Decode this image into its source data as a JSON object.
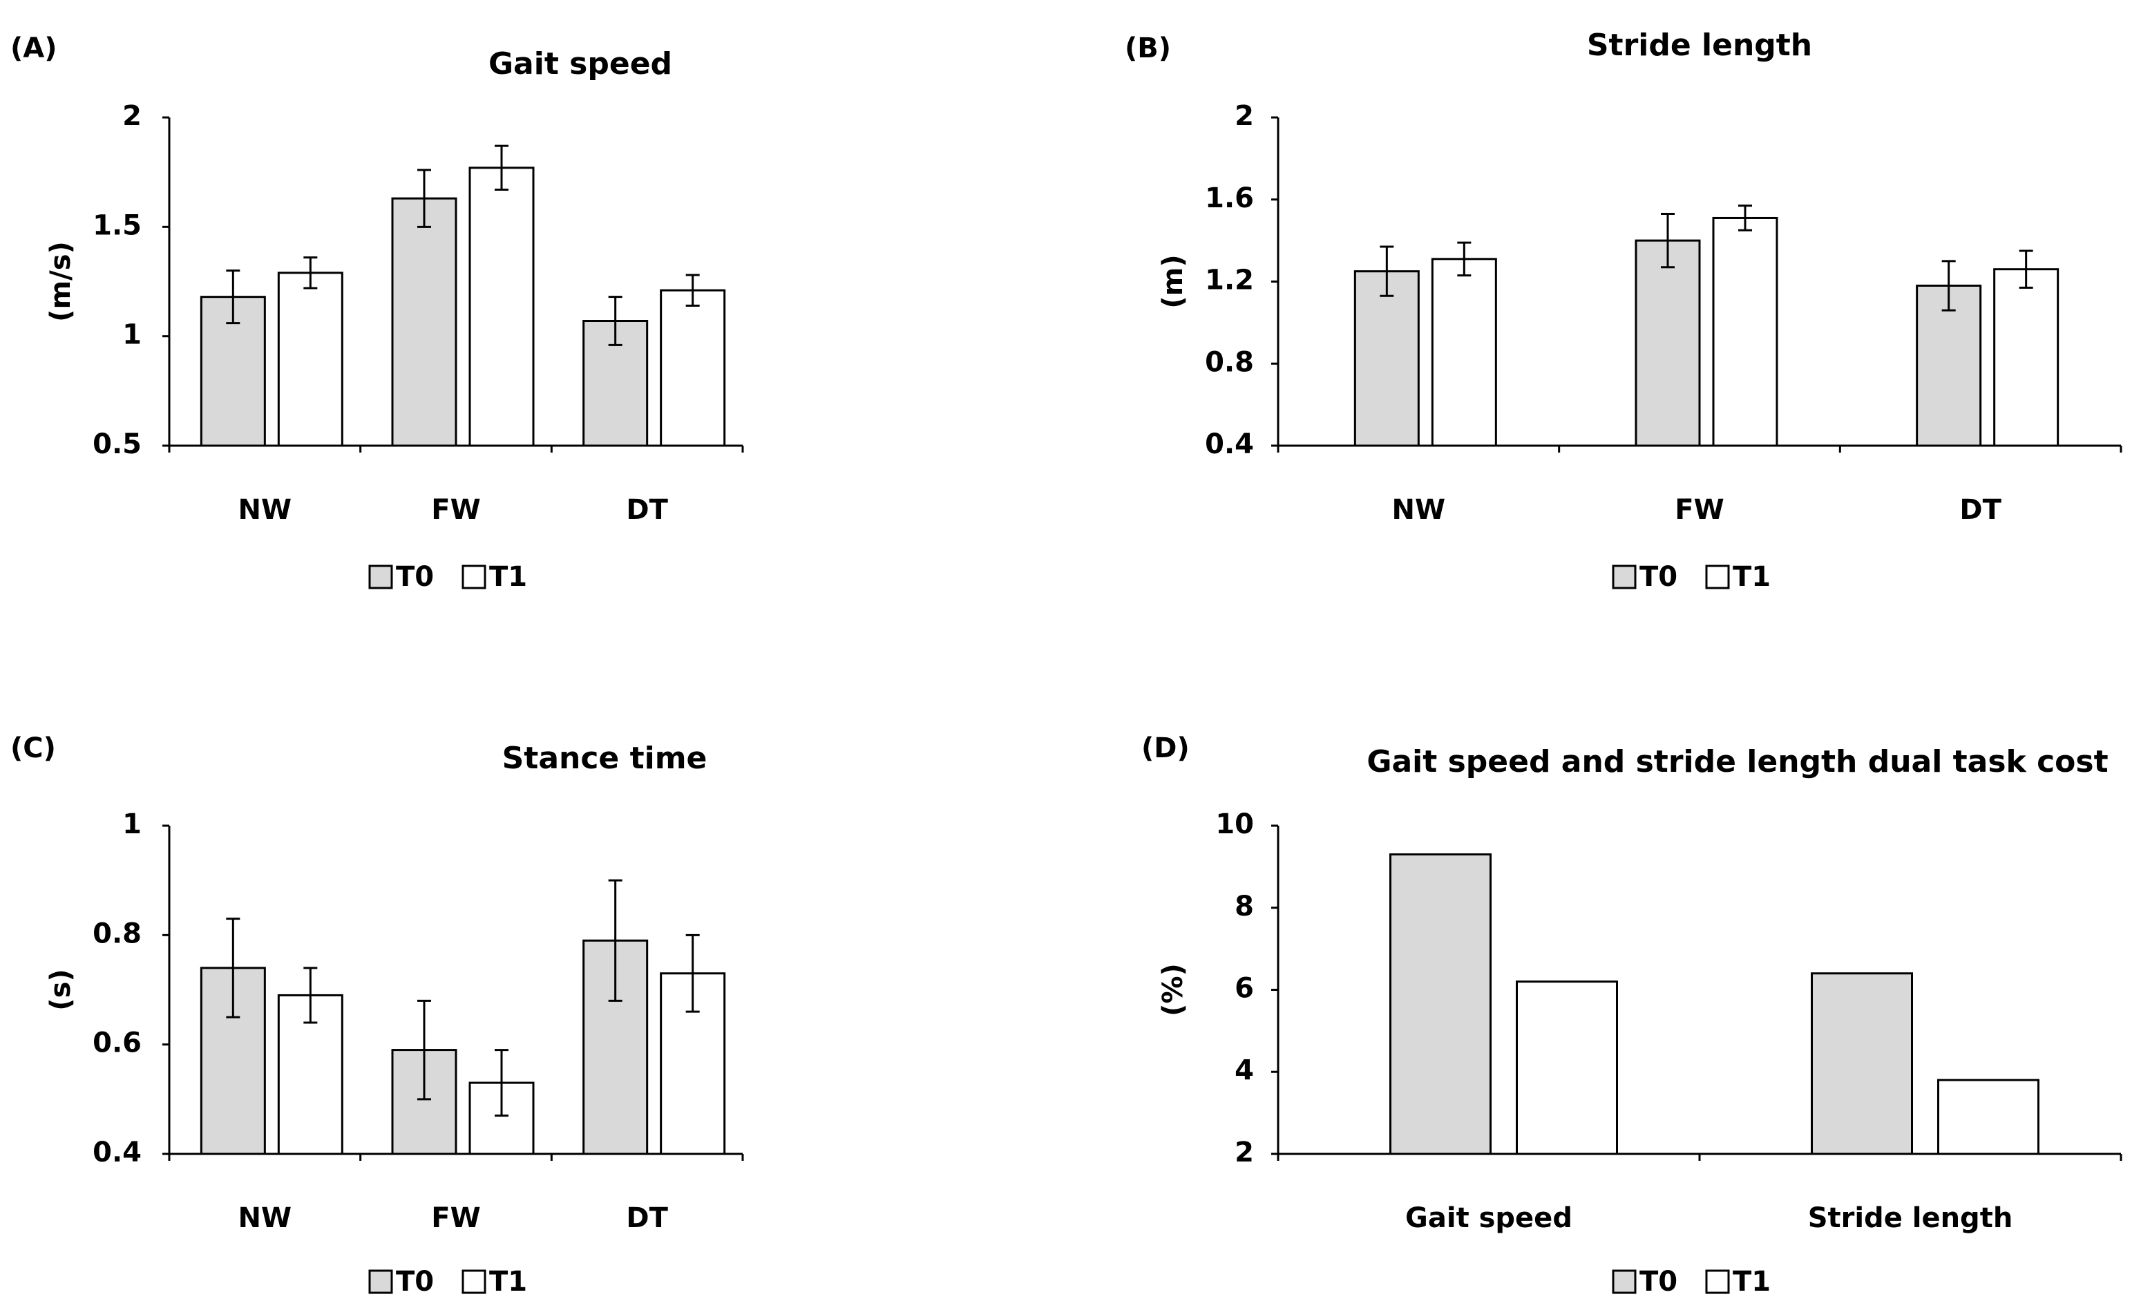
{
  "figure": {
    "panels": [
      {
        "label": "(A)"
      },
      {
        "label": "(B)"
      },
      {
        "label": "(C)"
      },
      {
        "label": "(D)"
      }
    ]
  },
  "colors": {
    "T0": "#d9d9d9",
    "T1": "#ffffff",
    "stroke": "#000000"
  },
  "chart_data": [
    {
      "type": "bar",
      "title": "Gait speed",
      "ylabel": "(m/s)",
      "xlabel": "",
      "categories": [
        "NW",
        "FW",
        "DT"
      ],
      "series": [
        {
          "name": "T0",
          "values": [
            1.18,
            1.63,
            1.07
          ],
          "errors": [
            0.12,
            0.13,
            0.11
          ]
        },
        {
          "name": "T1",
          "values": [
            1.29,
            1.77,
            1.21
          ],
          "errors": [
            0.07,
            0.1,
            0.07
          ]
        }
      ],
      "ylim": [
        0.5,
        2
      ],
      "yticks": [
        0.5,
        1,
        1.5,
        2
      ],
      "ytick_labels": [
        "0.5",
        "1",
        "1.5",
        "2"
      ],
      "legend": "bottom",
      "grid": false
    },
    {
      "type": "bar",
      "title": "Stride length",
      "ylabel": "(m)",
      "xlabel": "",
      "categories": [
        "NW",
        "FW",
        "DT"
      ],
      "series": [
        {
          "name": "T0",
          "values": [
            1.25,
            1.4,
            1.18
          ],
          "errors": [
            0.12,
            0.13,
            0.12
          ]
        },
        {
          "name": "T1",
          "values": [
            1.31,
            1.51,
            1.26
          ],
          "errors": [
            0.08,
            0.06,
            0.09
          ]
        }
      ],
      "ylim": [
        0.4,
        2
      ],
      "yticks": [
        0.4,
        0.8,
        1.2,
        1.6,
        2
      ],
      "ytick_labels": [
        "0.4",
        "0.8",
        "1.2",
        "1.6",
        "2"
      ],
      "legend": "bottom",
      "grid": false
    },
    {
      "type": "bar",
      "title": "Stance time",
      "ylabel": "(s)",
      "xlabel": "",
      "categories": [
        "NW",
        "FW",
        "DT"
      ],
      "series": [
        {
          "name": "T0",
          "values": [
            0.74,
            0.59,
            0.79
          ],
          "errors": [
            0.09,
            0.09,
            0.11
          ]
        },
        {
          "name": "T1",
          "values": [
            0.69,
            0.53,
            0.73
          ],
          "errors": [
            0.05,
            0.06,
            0.07
          ]
        }
      ],
      "ylim": [
        0.4,
        1
      ],
      "yticks": [
        0.4,
        0.6,
        0.8,
        1
      ],
      "ytick_labels": [
        "0.4",
        "0.6",
        "0.8",
        "1"
      ],
      "legend": "bottom",
      "grid": false
    },
    {
      "type": "bar",
      "title": "Gait speed and stride length dual task cost",
      "ylabel": "(%)",
      "xlabel": "",
      "categories": [
        "Gait speed",
        "Stride length"
      ],
      "series": [
        {
          "name": "T0",
          "values": [
            9.3,
            6.4
          ]
        },
        {
          "name": "T1",
          "values": [
            6.2,
            3.8
          ]
        }
      ],
      "ylim": [
        2,
        10
      ],
      "yticks": [
        2,
        4,
        6,
        8,
        10
      ],
      "ytick_labels": [
        "2",
        "4",
        "6",
        "8",
        "10"
      ],
      "legend": "bottom",
      "grid": false
    }
  ]
}
